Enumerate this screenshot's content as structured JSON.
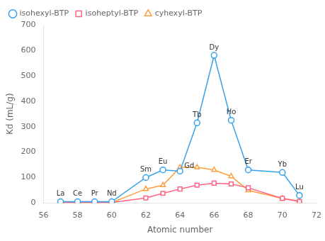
{
  "chart_data": {
    "type": "line",
    "x_label": "Atomic number",
    "y_label": "Kd (mL/g)",
    "x": [
      57,
      58,
      59,
      60,
      62,
      63,
      64,
      65,
      66,
      67,
      68,
      70,
      71
    ],
    "series": [
      {
        "name": "isohexyl-BTP",
        "marker": "o",
        "values": [
          5,
          5,
          5,
          5,
          100,
          130,
          125,
          315,
          580,
          325,
          130,
          120,
          30
        ]
      },
      {
        "name": "isoheptyl-BTP",
        "marker": "s",
        "values": [
          2,
          2,
          2,
          2,
          20,
          38,
          55,
          70,
          78,
          75,
          60,
          18,
          6
        ]
      },
      {
        "name": "cyhexyl-BTP",
        "marker": "^",
        "values": [
          2,
          2,
          2,
          2,
          55,
          70,
          140,
          140,
          130,
          105,
          50,
          18,
          8
        ]
      }
    ],
    "annotations": [
      {
        "text": "La",
        "x": 57,
        "y": 5
      },
      {
        "text": "Ce",
        "x": 58,
        "y": 5
      },
      {
        "text": "Pr",
        "x": 59,
        "y": 5
      },
      {
        "text": "Nd",
        "x": 60,
        "y": 5
      },
      {
        "text": "Sm",
        "x": 62,
        "y": 100
      },
      {
        "text": "Eu",
        "x": 63,
        "y": 130
      },
      {
        "text": "Gd",
        "x": 64,
        "y": 125
      },
      {
        "text": "Tb",
        "x": 65,
        "y": 315
      },
      {
        "text": "Dy",
        "x": 66,
        "y": 580
      },
      {
        "text": "Ho",
        "x": 67,
        "y": 325
      },
      {
        "text": "Er",
        "x": 68,
        "y": 130
      },
      {
        "text": "Yb",
        "x": 70,
        "y": 120
      },
      {
        "text": "Lu",
        "x": 71,
        "y": 30
      }
    ],
    "xlim": [
      56,
      72
    ],
    "xticks": [
      56,
      58,
      60,
      62,
      64,
      66,
      68,
      70,
      72
    ],
    "ylim": [
      0,
      700
    ],
    "yticks": [
      0,
      100,
      200,
      300,
      400,
      500,
      600,
      700
    ],
    "grid": false,
    "legend": "upper left"
  }
}
